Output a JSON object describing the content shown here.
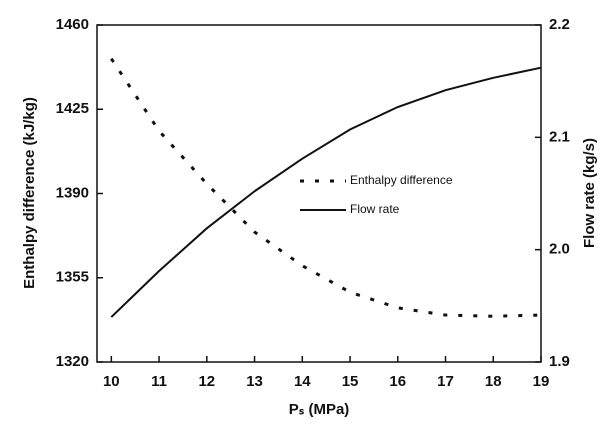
{
  "chart_data": {
    "type": "line",
    "x_label": "Pₛ (MPa)",
    "y_label": "Enthalpy difference (kJ/kg)",
    "y2_label": "Flow rate (kg/s)",
    "x": [
      10,
      11,
      12,
      13,
      14,
      15,
      16,
      17,
      18,
      19
    ],
    "xlim": [
      9.7,
      19
    ],
    "xticks": [
      10,
      11,
      12,
      13,
      14,
      15,
      16,
      17,
      18,
      19
    ],
    "ylim": [
      1320,
      1460
    ],
    "yticks": [
      1320,
      1355,
      1390,
      1425,
      1460
    ],
    "y2lim": [
      1.9,
      2.2
    ],
    "y2ticks": [
      1.9,
      {
        "value": 2,
        "label": "2.0"
      },
      2.1,
      2.2
    ],
    "series": [
      {
        "name": "Enthalpy difference",
        "color": "#111111",
        "style": "dashed",
        "values": [
          1446,
          1416,
          1394,
          1374,
          1360,
          1349,
          1342.5,
          1339.5,
          1339,
          1339.5
        ]
      },
      {
        "name": "Flow rate",
        "color": "#111111",
        "style": "solid",
        "axis": "y2",
        "values": [
          1.94,
          1.981,
          2.019,
          2.052,
          2.081,
          2.107,
          2.127,
          2.142,
          2.153,
          2.162
        ]
      }
    ]
  }
}
